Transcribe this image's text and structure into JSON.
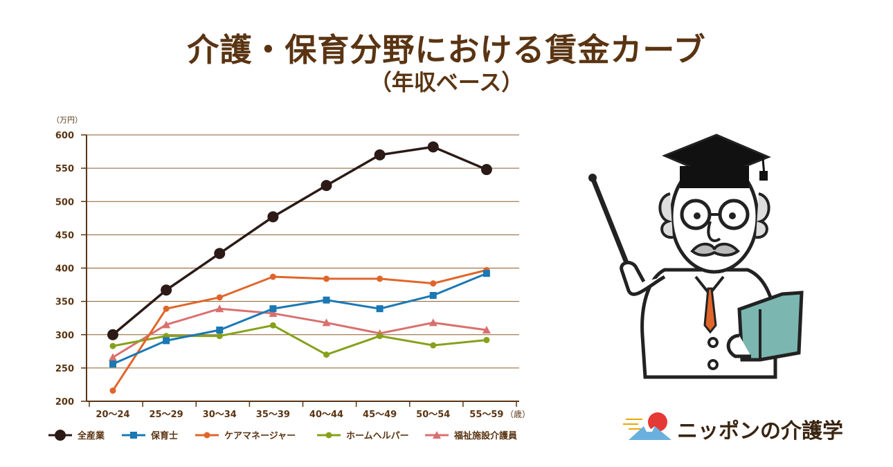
{
  "title": "介護・保育分野における賃金カーブ",
  "subtitle": "（年収ベース）",
  "brand": {
    "name": "ニッポンの介護学"
  },
  "chart_data": {
    "type": "line",
    "y_unit_label": "（万円）",
    "x_unit_label": "（歳）",
    "categories": [
      "20〜24",
      "25〜29",
      "30〜34",
      "35〜39",
      "40〜44",
      "45〜49",
      "50〜54",
      "55〜59"
    ],
    "ylim": [
      200,
      600
    ],
    "yticks": [
      200,
      250,
      300,
      350,
      400,
      450,
      500,
      550,
      600
    ],
    "grid": true,
    "legend_position": "bottom",
    "series": [
      {
        "name": "全産業",
        "color": "#2b1a16",
        "marker": "circle-large",
        "values": [
          300,
          367,
          422,
          477,
          524,
          570,
          582,
          548
        ]
      },
      {
        "name": "保育士",
        "color": "#1a78b4",
        "marker": "square",
        "values": [
          256,
          291,
          307,
          339,
          352,
          339,
          359,
          392
        ]
      },
      {
        "name": "ケアマネージャー",
        "color": "#e0652a",
        "marker": "circle",
        "values": [
          216,
          339,
          356,
          387,
          384,
          384,
          377,
          397
        ]
      },
      {
        "name": "ホームヘルパー",
        "color": "#86a11a",
        "marker": "circle",
        "values": [
          283,
          298,
          298,
          314,
          270,
          298,
          284,
          292
        ]
      },
      {
        "name": "福祉施設介護員",
        "color": "#d9706f",
        "marker": "triangle",
        "values": [
          266,
          315,
          339,
          332,
          318,
          302,
          318,
          307
        ]
      }
    ]
  }
}
